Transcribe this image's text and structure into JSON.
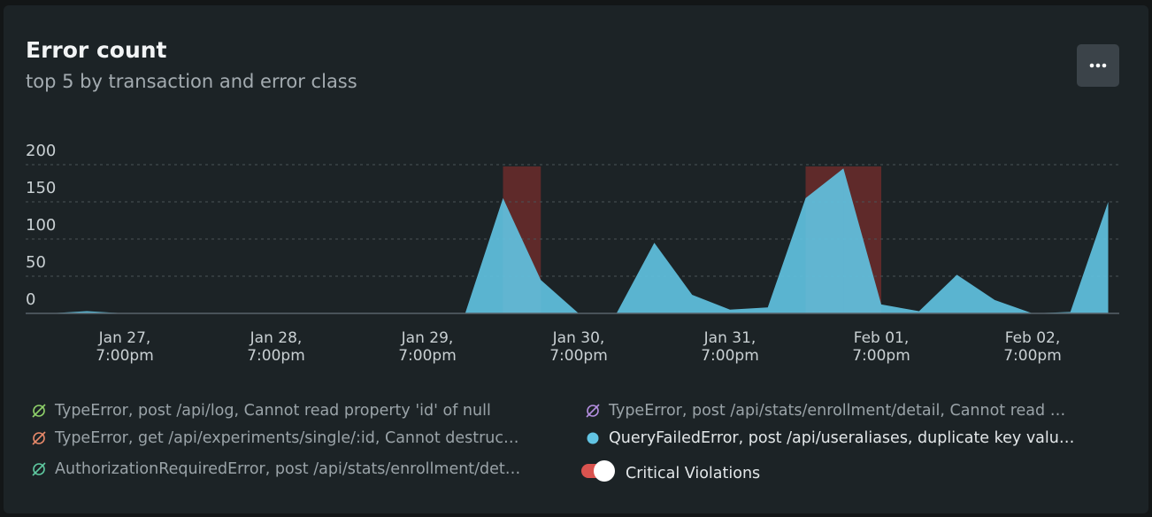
{
  "chart_data": {
    "type": "area",
    "title": "Error count",
    "subtitle": "top 5 by transaction and error class",
    "x": [
      "Jan 27, 7:00am",
      "Jan 27, 1:00pm",
      "Jan 27, 7:00pm",
      "Jan 28, 1:00am",
      "Jan 28, 7:00am",
      "Jan 28, 1:00pm",
      "Jan 28, 7:00pm",
      "Jan 29, 1:00am",
      "Jan 29, 7:00am",
      "Jan 29, 1:00pm",
      "Jan 29, 7:00pm",
      "Jan 30, 1:00am",
      "Jan 30, 7:00am",
      "Jan 30, 1:00pm",
      "Jan 30, 7:00pm",
      "Jan 31, 1:00am",
      "Jan 31, 7:00am",
      "Jan 31, 1:00pm",
      "Jan 31, 7:00pm",
      "Feb 01, 1:00am",
      "Feb 01, 7:00am",
      "Feb 01, 1:00pm",
      "Feb 01, 7:00pm",
      "Feb 02, 1:00am",
      "Feb 02, 7:00am",
      "Feb 02, 1:00pm",
      "Feb 02, 7:00pm",
      "Feb 03, 1:00am",
      "Feb 03, 7:00am"
    ],
    "series": [
      {
        "name": "TypeError, post /api/log, Cannot read property 'id' of null",
        "color": "#8fd16a",
        "hidden": true
      },
      {
        "name": "TypeError, post /api/stats/enrollment/detail, Cannot read …",
        "color": "#b48ee0",
        "hidden": true
      },
      {
        "name": "TypeError, get /api/experiments/single/:id, Cannot destruc…",
        "color": "#e8896a",
        "hidden": true
      },
      {
        "name": "QueryFailedError, post /api/useraliases, duplicate key valu…",
        "color": "#62c4e3",
        "hidden": false,
        "values": [
          0,
          3,
          0,
          0,
          0,
          0,
          0,
          0,
          0,
          0,
          0,
          0,
          155,
          45,
          0,
          0,
          95,
          25,
          5,
          8,
          155,
          195,
          12,
          3,
          52,
          18,
          0,
          2,
          150
        ]
      },
      {
        "name": "AuthorizationRequiredError, post /api/stats/enrollment/det…",
        "color": "#5fc9a0",
        "hidden": true
      }
    ],
    "xticks": [
      "Jan 27, 7:00pm",
      "Jan 28, 7:00pm",
      "Jan 29, 7:00pm",
      "Jan 30, 7:00pm",
      "Jan 31, 7:00pm",
      "Feb 01, 7:00pm",
      "Feb 02, 7:00pm"
    ],
    "ylim": [
      0,
      200
    ],
    "yticks": [
      0,
      50,
      100,
      150,
      200
    ],
    "grid": true,
    "violations": {
      "name": "Critical Violations",
      "color": "#6b2b2c",
      "enabled": true,
      "spans": [
        {
          "start": "Jan 30, 7:00am",
          "end": "Jan 30, 1:00pm"
        },
        {
          "start": "Feb 01, 7:00am",
          "end": "Feb 01, 1:00pm"
        },
        {
          "start": "Feb 01, 1:00pm",
          "end": "Feb 01, 7:00pm"
        }
      ]
    }
  }
}
